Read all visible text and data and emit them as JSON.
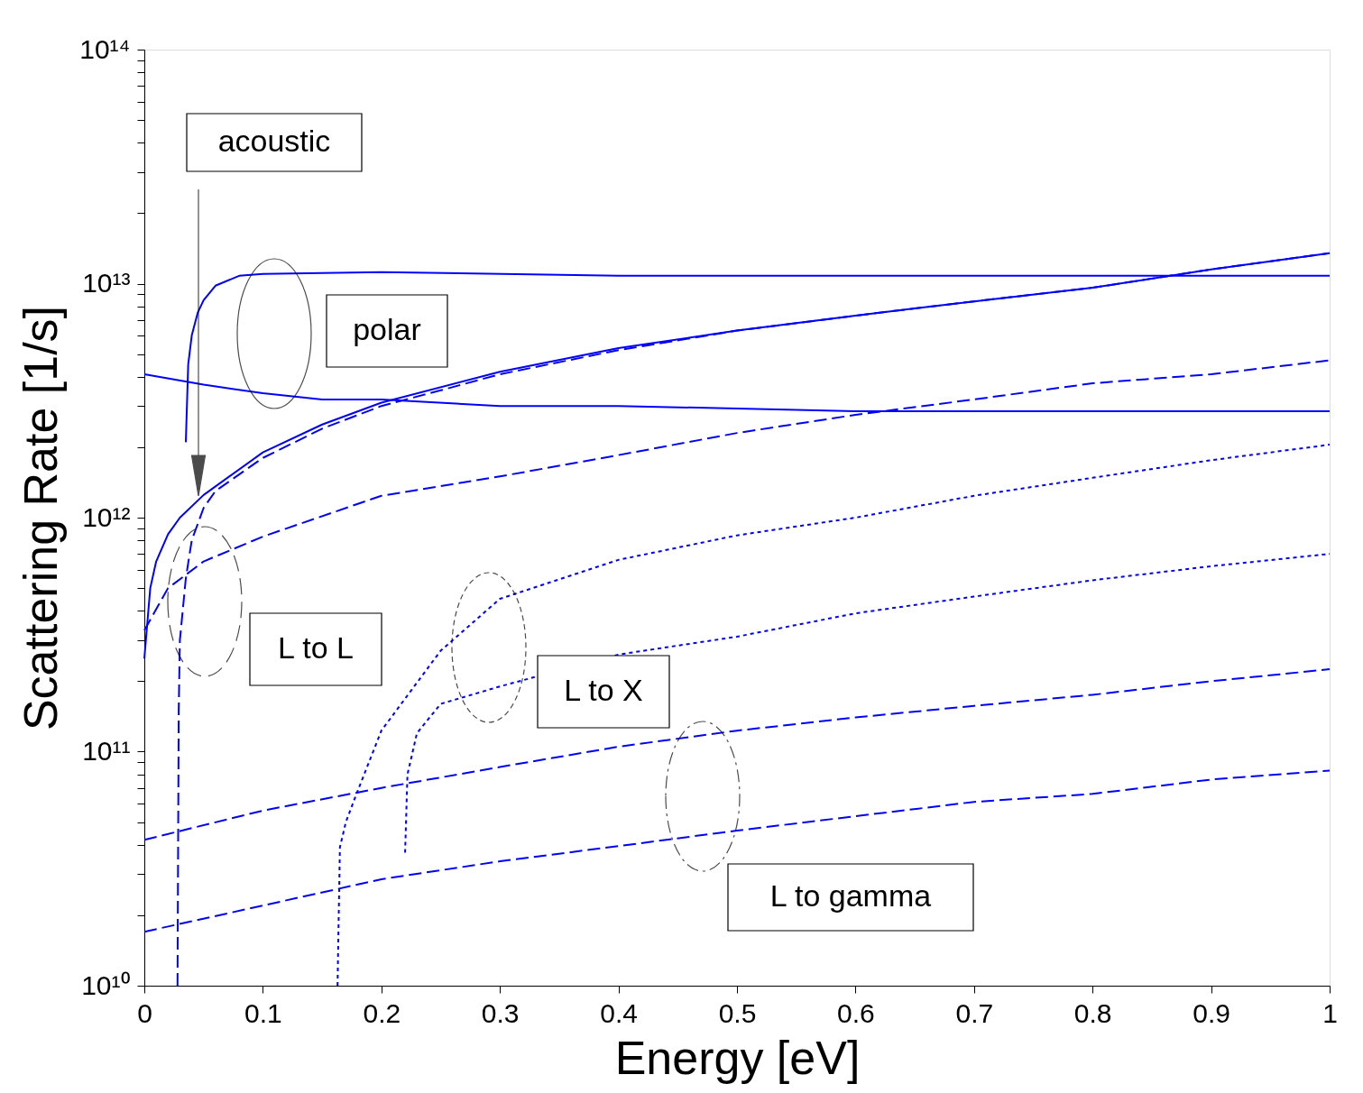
{
  "chart_data": {
    "type": "line",
    "xlabel": "Energy  [eV]",
    "ylabel": "Scattering Rate [1/s]",
    "log": "y",
    "grid": false,
    "legend": false,
    "marker": "none",
    "xlim": [
      0,
      1
    ],
    "xticks": [
      0,
      0.1,
      0.2,
      0.3,
      0.4,
      0.5,
      0.6,
      0.7,
      0.8,
      0.9,
      1
    ],
    "ylim": [
      10000000000,
      100000000000000
    ],
    "yticks": [
      {
        "value": 10000000000,
        "label": "10¹⁰"
      },
      {
        "value": 20000000000,
        "label": null
      },
      {
        "value": 30000000000,
        "label": null
      },
      {
        "value": 40000000000,
        "label": null
      },
      {
        "value": 50000000000,
        "label": null
      },
      {
        "value": 60000000000,
        "label": null
      },
      {
        "value": 70000000000,
        "label": null
      },
      {
        "value": 80000000000,
        "label": null
      },
      {
        "value": 90000000000,
        "label": null
      },
      {
        "value": 100000000000,
        "label": "10¹¹"
      },
      {
        "value": 200000000000,
        "label": null
      },
      {
        "value": 300000000000,
        "label": null
      },
      {
        "value": 400000000000,
        "label": null
      },
      {
        "value": 500000000000,
        "label": null
      },
      {
        "value": 600000000000,
        "label": null
      },
      {
        "value": 700000000000,
        "label": null
      },
      {
        "value": 800000000000,
        "label": null
      },
      {
        "value": 900000000000,
        "label": null
      },
      {
        "value": 1000000000000,
        "label": "10¹²"
      },
      {
        "value": 2000000000000,
        "label": null
      },
      {
        "value": 3000000000000,
        "label": null
      },
      {
        "value": 4000000000000,
        "label": null
      },
      {
        "value": 5000000000000,
        "label": null
      },
      {
        "value": 6000000000000,
        "label": null
      },
      {
        "value": 7000000000000,
        "label": null
      },
      {
        "value": 8000000000000,
        "label": null
      },
      {
        "value": 9000000000000,
        "label": null
      },
      {
        "value": 10000000000000,
        "label": "10¹³"
      },
      {
        "value": 20000000000000,
        "label": null
      },
      {
        "value": 30000000000000,
        "label": null
      },
      {
        "value": 40000000000000,
        "label": null
      },
      {
        "value": 50000000000000,
        "label": null
      },
      {
        "value": 60000000000000,
        "label": null
      },
      {
        "value": 70000000000000,
        "label": null
      },
      {
        "value": 80000000000000,
        "label": null
      },
      {
        "value": 90000000000000,
        "label": null
      },
      {
        "value": 100000000000000,
        "label": "10¹⁴"
      }
    ],
    "series": [
      {
        "color": "#0000ff",
        "line_style": "solid",
        "x": [
          0,
          0.05,
          0.1,
          0.15,
          0.2,
          0.3,
          0.4,
          0.6,
          0.8,
          1
        ],
        "values": [
          4100000000000,
          3700000000000,
          3400000000000,
          3200000000000,
          3200000000000,
          3000000000000,
          3000000000000,
          2850000000000,
          2850000000000,
          2850000000000
        ]
      },
      {
        "color": "#0000ff",
        "line_style": "solid",
        "x": [
          0.035,
          0.037,
          0.04,
          0.045,
          0.05,
          0.06,
          0.08,
          0.1,
          0.2,
          0.4,
          0.6,
          1
        ],
        "values": [
          2100000000000,
          4500000000000,
          6000000000000,
          7500000000000,
          8500000000000,
          9800000000000,
          10800000000000,
          11000000000000,
          11200000000000,
          10800000000000,
          10800000000000,
          10800000000000
        ]
      },
      {
        "color": "#0000ff",
        "line_style": "solid",
        "x": [
          0,
          0.005,
          0.01,
          0.02,
          0.03,
          0.05,
          0.1,
          0.15,
          0.2,
          0.3,
          0.4,
          0.5,
          0.6,
          0.7,
          0.8,
          0.9,
          1
        ],
        "values": [
          250000000000,
          500000000000,
          650000000000,
          850000000000,
          1000000000000,
          1250000000000,
          1900000000000,
          2500000000000,
          3100000000000,
          4200000000000,
          5300000000000,
          6300000000000,
          7300000000000,
          8400000000000,
          9600000000000,
          11500000000000,
          13500000000000
        ]
      },
      {
        "color": "#0000ff",
        "line_style": "dashed",
        "x": [
          0.028,
          0.029,
          0.03,
          0.035,
          0.04,
          0.05,
          0.06,
          0.1,
          0.15,
          0.2,
          0.25,
          0.3,
          0.4,
          0.5,
          0.6,
          0.7,
          0.8,
          0.9,
          1
        ],
        "values": [
          10000000000,
          150000000000,
          300000000000,
          550000000000,
          800000000000,
          1100000000000,
          1300000000000,
          1800000000000,
          2400000000000,
          3000000000000,
          3500000000000,
          4100000000000,
          5200000000000,
          6300000000000,
          7300000000000,
          8400000000000,
          9600000000000,
          11500000000000,
          13500000000000
        ]
      },
      {
        "color": "#0000ff",
        "line_style": "dashed",
        "x": [
          0,
          0.02,
          0.05,
          0.1,
          0.2,
          0.3,
          0.4,
          0.5,
          0.6,
          0.7,
          0.8,
          0.9,
          1
        ],
        "values": [
          330000000000,
          500000000000,
          650000000000,
          830000000000,
          1240000000000,
          1500000000000,
          1850000000000,
          2300000000000,
          2750000000000,
          3200000000000,
          3750000000000,
          4100000000000,
          4700000000000
        ]
      },
      {
        "color": "#0000ff",
        "line_style": "dotted",
        "x": [
          0.163,
          0.165,
          0.17,
          0.18,
          0.2,
          0.25,
          0.3,
          0.4,
          0.5,
          0.6,
          0.7,
          0.8,
          0.9,
          1
        ],
        "values": [
          10000000000,
          39000000000,
          50000000000,
          68000000000,
          123000000000,
          270000000000,
          450000000000,
          660000000000,
          840000000000,
          1000000000000,
          1240000000000,
          1480000000000,
          1760000000000,
          2050000000000
        ]
      },
      {
        "color": "#0000ff",
        "line_style": "dotted",
        "x": [
          0.22,
          0.222,
          0.23,
          0.25,
          0.3,
          0.4,
          0.5,
          0.6,
          0.7,
          0.8,
          0.9,
          1
        ],
        "values": [
          37000000000,
          80000000000,
          120000000000,
          160000000000,
          190000000000,
          260000000000,
          310000000000,
          390000000000,
          460000000000,
          540000000000,
          620000000000,
          700000000000
        ]
      },
      {
        "color": "#0000ff",
        "line_style": "dashed",
        "x": [
          0,
          0.1,
          0.2,
          0.3,
          0.4,
          0.5,
          0.6,
          0.7,
          0.8,
          0.9,
          1
        ],
        "values": [
          42000000000,
          56000000000,
          70000000000,
          86000000000,
          105000000000,
          123000000000,
          140000000000,
          157000000000,
          175000000000,
          200000000000,
          225000000000
        ]
      },
      {
        "color": "#0000ff",
        "line_style": "dashed",
        "x": [
          0,
          0.1,
          0.2,
          0.3,
          0.4,
          0.5,
          0.6,
          0.7,
          0.8,
          0.9,
          1
        ],
        "values": [
          17000000000,
          22000000000,
          28500000000,
          34000000000,
          39500000000,
          46000000000,
          53000000000,
          61000000000,
          66000000000,
          76000000000,
          83000000000
        ]
      }
    ],
    "annotations": [
      "acoustic",
      "polar",
      "L to L",
      "L to X",
      "L to gamma"
    ]
  }
}
